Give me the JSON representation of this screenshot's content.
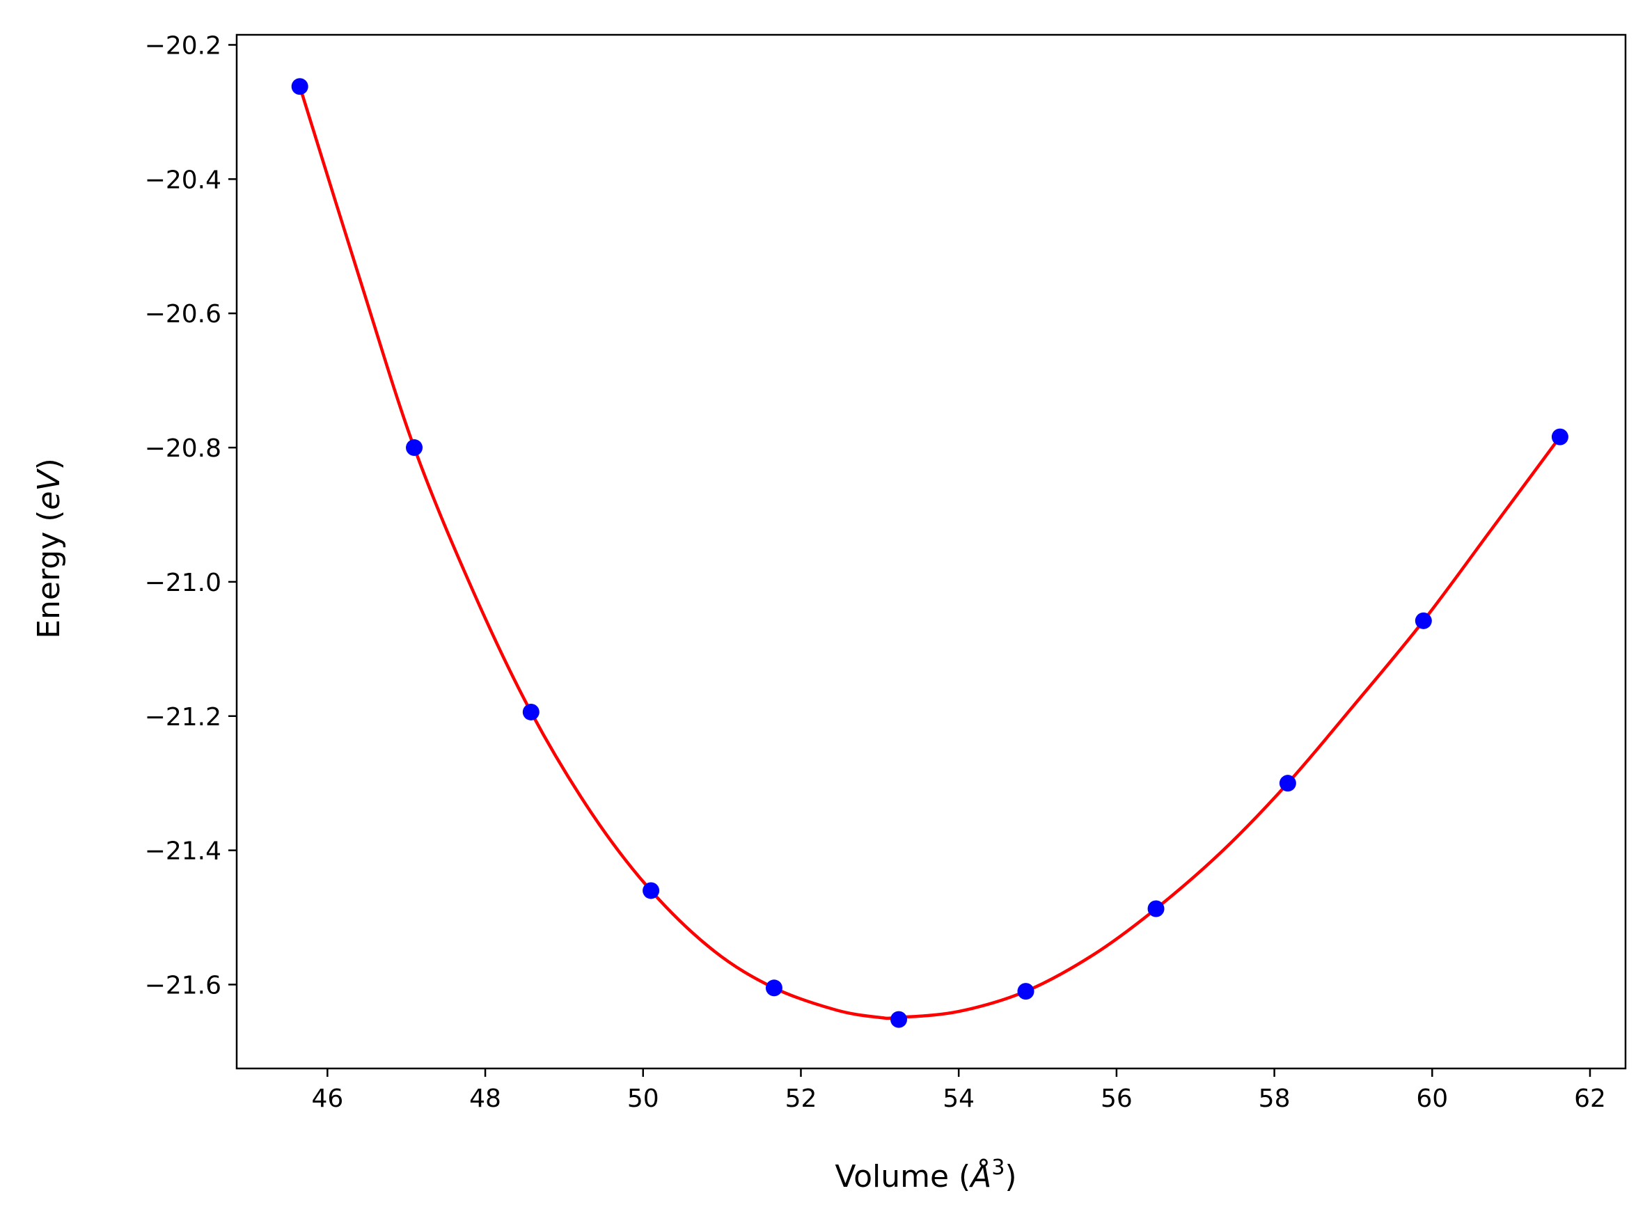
{
  "chart_data": {
    "type": "scatter",
    "xlabel": "Volume",
    "xlabel_unit_open": " (",
    "xlabel_unit_symbol": "Å",
    "xlabel_unit_exp": "3",
    "xlabel_unit_close": ")",
    "ylabel": "Energy",
    "ylabel_unit_open": " (",
    "ylabel_unit_symbol": "eV",
    "ylabel_unit_close": ")",
    "xlim": [
      44.85,
      62.45
    ],
    "ylim": [
      -21.725,
      -20.185
    ],
    "x_ticks": [
      46,
      48,
      50,
      52,
      54,
      56,
      58,
      60,
      62
    ],
    "x_tick_labels": [
      "46",
      "48",
      "50",
      "52",
      "54",
      "56",
      "58",
      "60",
      "62"
    ],
    "y_ticks": [
      -20.2,
      -20.4,
      -20.6,
      -20.8,
      -21.0,
      -21.2,
      -21.4,
      -21.6
    ],
    "y_tick_labels": [
      "−20.2",
      "−20.4",
      "−20.6",
      "−20.8",
      "−21.0",
      "−21.2",
      "−21.4",
      "−21.6"
    ],
    "grid": false,
    "series": [
      {
        "kind": "scatter",
        "color": "#0000ff",
        "x": [
          45.65,
          47.1,
          48.58,
          50.1,
          51.66,
          53.24,
          54.85,
          56.5,
          58.17,
          59.89,
          61.62
        ],
        "y": [
          -20.262,
          -20.8,
          -21.194,
          -21.46,
          -21.605,
          -21.652,
          -21.61,
          -21.487,
          -21.3,
          -21.058,
          -20.784
        ]
      },
      {
        "kind": "line",
        "color": "#ff0000",
        "x": [
          45.65,
          46.4,
          47.1,
          47.85,
          48.58,
          49.35,
          50.1,
          50.9,
          51.66,
          52.45,
          53.0,
          53.24,
          54.0,
          54.85,
          55.7,
          56.5,
          57.35,
          58.17,
          59.0,
          59.89,
          60.75,
          61.62
        ],
        "y": [
          -20.262,
          -20.545,
          -20.8,
          -21.015,
          -21.194,
          -21.345,
          -21.46,
          -21.55,
          -21.605,
          -21.638,
          -21.649,
          -21.649,
          -21.64,
          -21.61,
          -21.556,
          -21.487,
          -21.4,
          -21.3,
          -21.185,
          -21.058,
          -20.922,
          -20.784
        ]
      }
    ]
  }
}
